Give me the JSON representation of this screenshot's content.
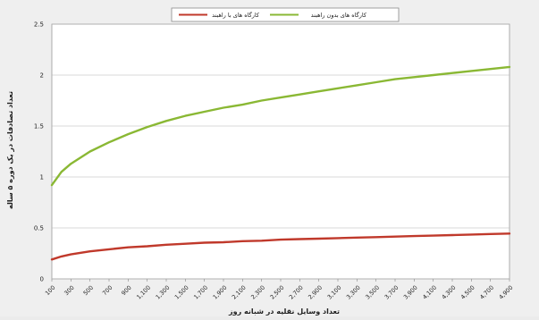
{
  "chart_data": {
    "type": "line",
    "title": "",
    "xlabel": "تعداد وسایل نقلیه در شبانه روز",
    "ylabel": "تعداد تصادفات در یک دوره ۵ ساله",
    "ylim": [
      0,
      2.5
    ],
    "y_ticks": [
      "0",
      "0.5",
      "1",
      "1.5",
      "2",
      "2.5"
    ],
    "x_ticks": [
      "100",
      "300",
      "500",
      "700",
      "900",
      "1,100",
      "1,300",
      "1,500",
      "1,700",
      "1,900",
      "2,100",
      "2,300",
      "2,500",
      "2,700",
      "2,900",
      "3,100",
      "3,300",
      "3,500",
      "3,700",
      "3,900",
      "4,100",
      "4,300",
      "4,500",
      "4,700",
      "4,900"
    ],
    "grid": true,
    "legend_position": "top",
    "series": [
      {
        "name": "کارگاه های با راهبند",
        "color": "#c0392b",
        "x": [
          100,
          200,
          300,
          500,
          700,
          900,
          1100,
          1300,
          1500,
          1700,
          1900,
          2100,
          2300,
          2500,
          2700,
          2900,
          3100,
          3300,
          3500,
          3700,
          3900,
          4100,
          4300,
          4500,
          4700,
          4900
        ],
        "values": [
          0.19,
          0.22,
          0.24,
          0.27,
          0.29,
          0.31,
          0.32,
          0.335,
          0.345,
          0.355,
          0.36,
          0.37,
          0.375,
          0.385,
          0.39,
          0.395,
          0.4,
          0.405,
          0.41,
          0.415,
          0.42,
          0.425,
          0.43,
          0.435,
          0.44,
          0.445
        ]
      },
      {
        "name": "کارگاه های بدون راهبند",
        "color": "#8ab834",
        "x": [
          100,
          200,
          300,
          500,
          700,
          900,
          1100,
          1300,
          1500,
          1700,
          1900,
          2100,
          2300,
          2500,
          2700,
          2900,
          3100,
          3300,
          3500,
          3700,
          3900,
          4100,
          4300,
          4500,
          4700,
          4900
        ],
        "values": [
          0.92,
          1.05,
          1.13,
          1.25,
          1.34,
          1.42,
          1.49,
          1.55,
          1.6,
          1.64,
          1.68,
          1.71,
          1.75,
          1.78,
          1.81,
          1.84,
          1.87,
          1.9,
          1.93,
          1.96,
          1.98,
          2.0,
          2.02,
          2.04,
          2.06,
          2.08
        ]
      }
    ]
  }
}
